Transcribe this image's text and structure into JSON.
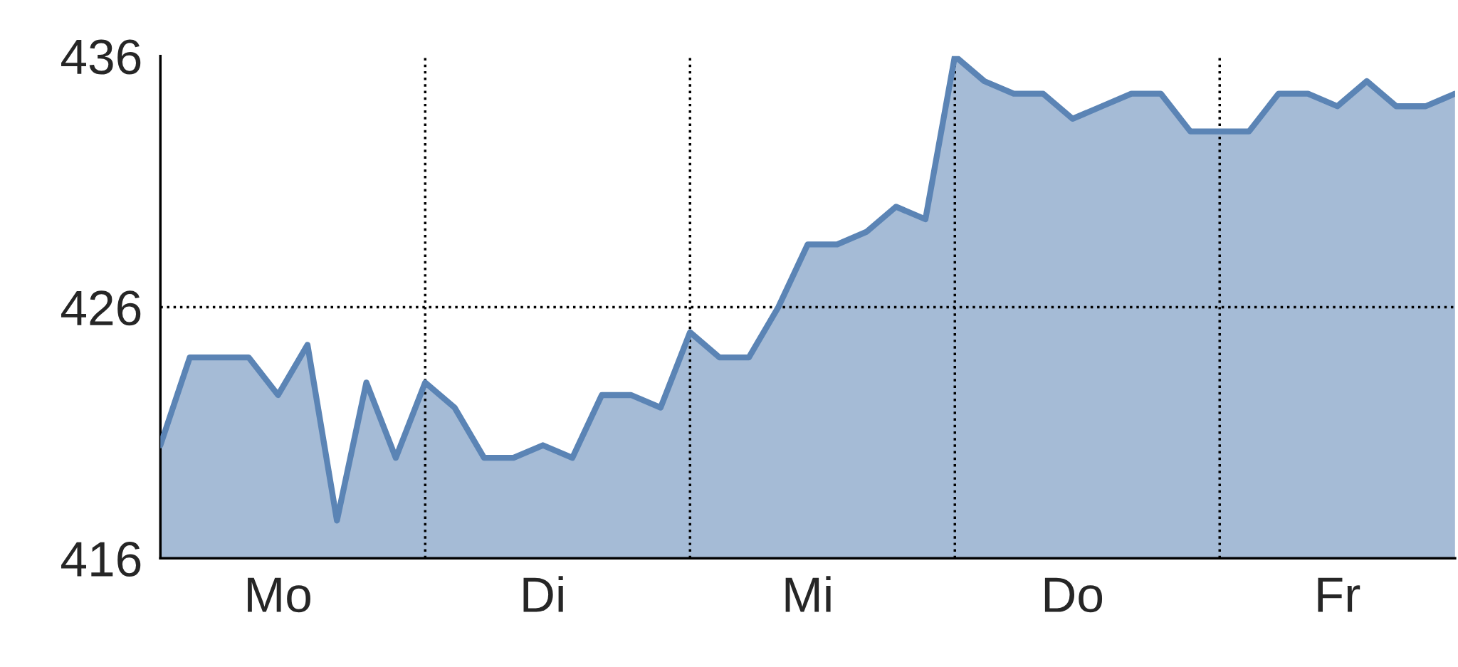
{
  "chart_data": {
    "type": "area",
    "categories": [
      null,
      null,
      null,
      null,
      "Mo",
      null,
      null,
      null,
      null,
      null,
      null,
      null,
      null,
      "Di",
      null,
      null,
      null,
      null,
      null,
      null,
      null,
      null,
      "Mi",
      null,
      null,
      null,
      null,
      null,
      null,
      null,
      null,
      "Do",
      null,
      null,
      null,
      null,
      null,
      null,
      null,
      null,
      "Fr",
      null,
      null,
      null,
      null
    ],
    "series": [
      {
        "color": "#5b84b5",
        "values": [
          420.5,
          424,
          424,
          424,
          422.5,
          424.5,
          417.5,
          423,
          420,
          423,
          422,
          420,
          420,
          420.5,
          420,
          422.5,
          422.5,
          422,
          425,
          424,
          424,
          426,
          428.5,
          428.5,
          429,
          430,
          429.5,
          436,
          435,
          434.5,
          434.5,
          433.5,
          434,
          434.5,
          434.5,
          433,
          433,
          433,
          434.5,
          434.5,
          434,
          435,
          434,
          434,
          434.5
        ]
      }
    ],
    "ylim": [
      416,
      436
    ],
    "yticks": [
      416,
      426,
      436
    ],
    "grid": "x",
    "legend": false,
    "ref_lines": [
      {
        "axis": "y",
        "value": 426,
        "line_style": "dotted",
        "color": "#000000"
      }
    ]
  }
}
